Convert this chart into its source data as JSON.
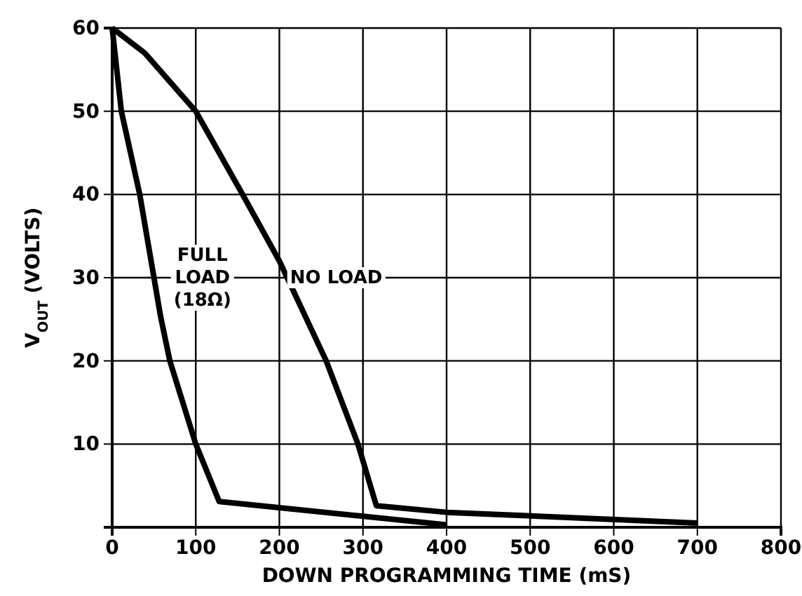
{
  "chart_data": {
    "type": "line",
    "xlabel": "DOWN PROGRAMMING TIME (mS)",
    "ylabel": "V$_{OUT}$ (VOLTS)",
    "xlim": [
      0,
      800
    ],
    "ylim": [
      0,
      60
    ],
    "xticks": [
      0,
      100,
      200,
      300,
      400,
      500,
      600,
      700,
      800
    ],
    "yticks": [
      {
        "value": 0,
        "label": null
      },
      10,
      20,
      30,
      40,
      50,
      60
    ],
    "grid": true,
    "line_style": "solid",
    "marker": "none",
    "series": [
      {
        "color": "#000000",
        "x": [
          0,
          11,
          33,
          50,
          58,
          69,
          100,
          128,
          400
        ],
        "values": [
          60,
          50,
          40,
          30,
          25.3,
          20,
          10,
          3.1,
          0.3
        ]
      },
      {
        "color": "#000000",
        "x": [
          0,
          39,
          100,
          156,
          200,
          256,
          294,
          316,
          400,
          700
        ],
        "values": [
          60,
          57,
          50,
          40,
          32,
          20,
          10,
          2.6,
          1.8,
          0.5
        ]
      }
    ],
    "annotations": [
      "FULL\nLOAD\n(18Ω)",
      "NO LOAD"
    ]
  }
}
